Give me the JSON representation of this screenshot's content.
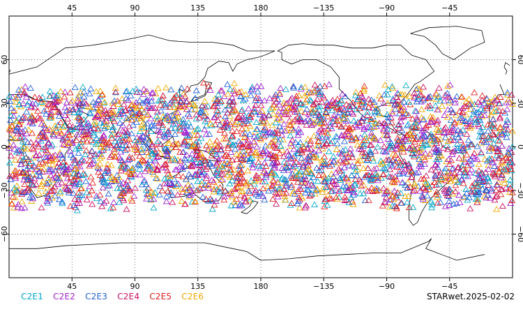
{
  "chart_data": {
    "type": "scatter",
    "projection": "cylindrical-equidistant",
    "center_longitude": 180,
    "marker": "open-triangle",
    "grid": "dotted",
    "x_tick_labels": [
      "45",
      "90",
      "135",
      "180",
      "−135",
      "−90",
      "−45"
    ],
    "y_tick_labels": [
      "60",
      "30",
      "0",
      "−30",
      "−60"
    ],
    "x_ticks": [
      45,
      90,
      135,
      180,
      -135,
      -90,
      -45
    ],
    "y_ticks": [
      60,
      30,
      0,
      -30,
      -60
    ],
    "lat_range": [
      -90,
      90
    ],
    "observation_lat_range": [
      -45,
      45
    ],
    "series": [
      {
        "name": "C2E1",
        "color": "#00a6c8"
      },
      {
        "name": "C2E2",
        "color": "#a020d0"
      },
      {
        "name": "C2E3",
        "color": "#1e5fd8"
      },
      {
        "name": "C2E4",
        "color": "#c81060"
      },
      {
        "name": "C2E5",
        "color": "#e02020"
      },
      {
        "name": "C2E6",
        "color": "#f0a800"
      }
    ]
  },
  "legend_items": [
    "C2E1",
    "C2E2",
    "C2E3",
    "C2E4",
    "C2E5",
    "C2E6"
  ],
  "date_label": "STARwet.2025-02-02"
}
